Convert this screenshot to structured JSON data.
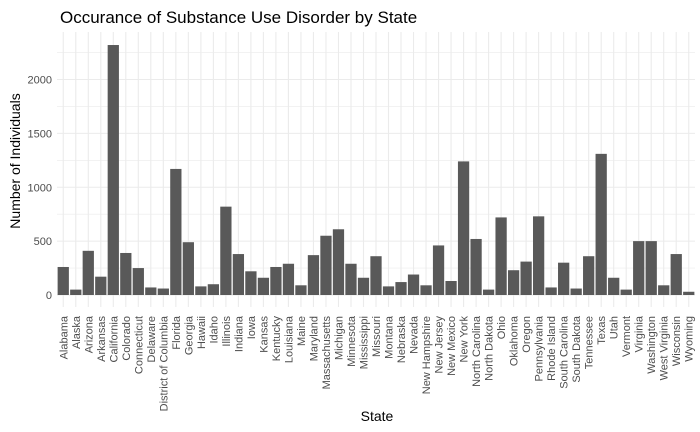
{
  "chart_data": {
    "type": "bar",
    "title": "Occurance of Substance Use Disorder by State",
    "xlabel": "State",
    "ylabel": "Number of Individuals",
    "ylim": [
      0,
      2420
    ],
    "yticks": [
      0,
      500,
      1000,
      1500,
      2000
    ],
    "grid": true,
    "bar_color": "#595959",
    "grid_color": "#ebebeb",
    "categories": [
      "Alabama",
      "Alaska",
      "Arizona",
      "Arkansas",
      "California",
      "Colorado",
      "Connecticut",
      "Delaware",
      "District of Columbia",
      "Florida",
      "Georgia",
      "Hawaii",
      "Idaho",
      "Illinois",
      "Indiana",
      "Iowa",
      "Kansas",
      "Kentucky",
      "Louisiana",
      "Maine",
      "Maryland",
      "Massachusetts",
      "Michigan",
      "Minnesota",
      "Mississippi",
      "Missouri",
      "Montana",
      "Nebraska",
      "Nevada",
      "New Hampshire",
      "New Jersey",
      "New Mexico",
      "New York",
      "North Carolina",
      "North Dakota",
      "Ohio",
      "Oklahoma",
      "Oregon",
      "Pennsylvania",
      "Rhode Island",
      "South Carolina",
      "South Dakota",
      "Tennessee",
      "Texas",
      "Utah",
      "Vermont",
      "Virginia",
      "Washington",
      "West Virginia",
      "Wisconsin",
      "Wyoming"
    ],
    "values": [
      260,
      50,
      410,
      170,
      2320,
      390,
      250,
      70,
      60,
      1170,
      490,
      80,
      100,
      820,
      380,
      220,
      160,
      260,
      290,
      90,
      370,
      550,
      610,
      290,
      160,
      360,
      80,
      120,
      190,
      90,
      460,
      130,
      1240,
      520,
      50,
      720,
      230,
      310,
      730,
      70,
      300,
      60,
      360,
      1310,
      160,
      50,
      500,
      500,
      90,
      380,
      30
    ]
  }
}
